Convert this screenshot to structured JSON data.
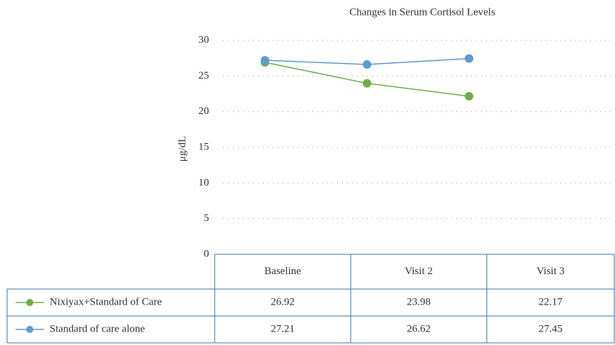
{
  "chart_data": {
    "type": "line",
    "title": "Changes in Serum Cortisol Levels",
    "y_label": "μg/dL",
    "categories": [
      "Baseline",
      "Visit 2",
      "Visit 3"
    ],
    "series": [
      {
        "name": "Nixiyax+Standard of Care",
        "color": "#70ad47",
        "values": [
          26.92,
          23.98,
          22.17
        ]
      },
      {
        "name": "Standard of care alone",
        "color": "#5b9bd5",
        "values": [
          27.21,
          26.62,
          27.45
        ]
      }
    ],
    "ylim": [
      0,
      30
    ],
    "yticks": [
      0,
      5,
      10,
      15,
      20,
      25,
      30
    ],
    "grid": true,
    "data_table": true
  }
}
